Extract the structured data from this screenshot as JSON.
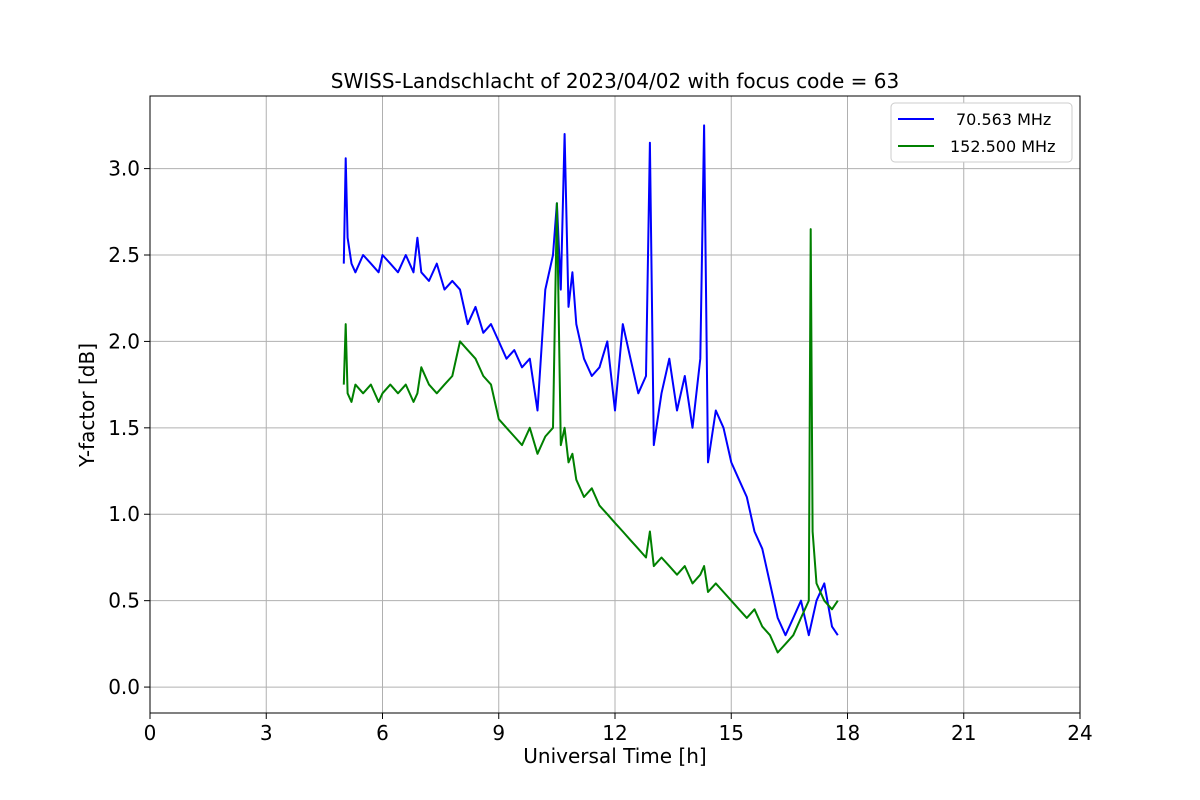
{
  "chart_data": {
    "type": "line",
    "title": "SWISS-Landschlacht of 2023/04/02 with focus code = 63",
    "xlabel": "Universal Time [h]",
    "ylabel": "Y-factor [dB]",
    "xlim": [
      0,
      24
    ],
    "ylim": [
      -0.15,
      3.42
    ],
    "xticks": [
      0,
      3,
      6,
      9,
      12,
      15,
      18,
      21,
      24
    ],
    "xtick_labels": [
      "0",
      "3",
      "6",
      "9",
      "12",
      "15",
      "18",
      "21",
      "24"
    ],
    "yticks": [
      0.0,
      0.5,
      1.0,
      1.5,
      2.0,
      2.5,
      3.0
    ],
    "ytick_labels": [
      "0.0",
      "0.5",
      "1.0",
      "1.5",
      "2.0",
      "2.5",
      "3.0"
    ],
    "grid": true,
    "legend_position": "top-right",
    "series": [
      {
        "name": "70.563 MHz",
        "color": "#0000ff",
        "x": [
          5.0,
          5.05,
          5.1,
          5.2,
          5.3,
          5.5,
          5.7,
          5.9,
          6.0,
          6.2,
          6.4,
          6.6,
          6.8,
          6.9,
          7.0,
          7.2,
          7.4,
          7.6,
          7.8,
          8.0,
          8.2,
          8.4,
          8.6,
          8.8,
          9.0,
          9.2,
          9.4,
          9.6,
          9.8,
          10.0,
          10.2,
          10.4,
          10.5,
          10.6,
          10.7,
          10.8,
          10.9,
          11.0,
          11.2,
          11.4,
          11.6,
          11.8,
          12.0,
          12.2,
          12.4,
          12.6,
          12.8,
          12.9,
          13.0,
          13.2,
          13.4,
          13.6,
          13.8,
          14.0,
          14.2,
          14.3,
          14.4,
          14.6,
          14.8,
          15.0,
          15.2,
          15.4,
          15.6,
          15.8,
          16.0,
          16.2,
          16.4,
          16.6,
          16.8,
          17.0,
          17.2,
          17.4,
          17.6,
          17.75
        ],
        "y": [
          2.45,
          3.06,
          2.6,
          2.45,
          2.4,
          2.5,
          2.45,
          2.4,
          2.5,
          2.45,
          2.4,
          2.5,
          2.4,
          2.6,
          2.4,
          2.35,
          2.45,
          2.3,
          2.35,
          2.3,
          2.1,
          2.2,
          2.05,
          2.1,
          2.0,
          1.9,
          1.95,
          1.85,
          1.9,
          1.6,
          2.3,
          2.5,
          2.8,
          2.3,
          3.2,
          2.2,
          2.4,
          2.1,
          1.9,
          1.8,
          1.85,
          2.0,
          1.6,
          2.1,
          1.9,
          1.7,
          1.8,
          3.15,
          1.4,
          1.7,
          1.9,
          1.6,
          1.8,
          1.5,
          1.9,
          3.25,
          1.3,
          1.6,
          1.5,
          1.3,
          1.2,
          1.1,
          0.9,
          0.8,
          0.6,
          0.4,
          0.3,
          0.4,
          0.5,
          0.3,
          0.5,
          0.6,
          0.35,
          0.3
        ]
      },
      {
        "name": "152.500 MHz",
        "color": "#008000",
        "x": [
          5.0,
          5.05,
          5.1,
          5.2,
          5.3,
          5.5,
          5.7,
          5.9,
          6.0,
          6.2,
          6.4,
          6.6,
          6.8,
          6.9,
          7.0,
          7.2,
          7.4,
          7.6,
          7.8,
          8.0,
          8.2,
          8.4,
          8.6,
          8.8,
          9.0,
          9.2,
          9.4,
          9.6,
          9.8,
          10.0,
          10.2,
          10.4,
          10.5,
          10.6,
          10.7,
          10.8,
          10.9,
          11.0,
          11.2,
          11.4,
          11.6,
          11.8,
          12.0,
          12.2,
          12.4,
          12.6,
          12.8,
          12.9,
          13.0,
          13.2,
          13.4,
          13.6,
          13.8,
          14.0,
          14.2,
          14.3,
          14.4,
          14.6,
          14.8,
          15.0,
          15.2,
          15.4,
          15.6,
          15.8,
          16.0,
          16.2,
          16.4,
          16.6,
          16.8,
          17.0,
          17.05,
          17.1,
          17.2,
          17.4,
          17.6,
          17.75
        ],
        "y": [
          1.75,
          2.1,
          1.7,
          1.65,
          1.75,
          1.7,
          1.75,
          1.65,
          1.7,
          1.75,
          1.7,
          1.75,
          1.65,
          1.7,
          1.85,
          1.75,
          1.7,
          1.75,
          1.8,
          2.0,
          1.95,
          1.9,
          1.8,
          1.75,
          1.55,
          1.5,
          1.45,
          1.4,
          1.5,
          1.35,
          1.45,
          1.5,
          2.8,
          1.4,
          1.5,
          1.3,
          1.35,
          1.2,
          1.1,
          1.15,
          1.05,
          1.0,
          0.95,
          0.9,
          0.85,
          0.8,
          0.75,
          0.9,
          0.7,
          0.75,
          0.7,
          0.65,
          0.7,
          0.6,
          0.65,
          0.7,
          0.55,
          0.6,
          0.55,
          0.5,
          0.45,
          0.4,
          0.45,
          0.35,
          0.3,
          0.2,
          0.25,
          0.3,
          0.4,
          0.5,
          2.65,
          0.9,
          0.6,
          0.5,
          0.45,
          0.5
        ]
      }
    ]
  }
}
